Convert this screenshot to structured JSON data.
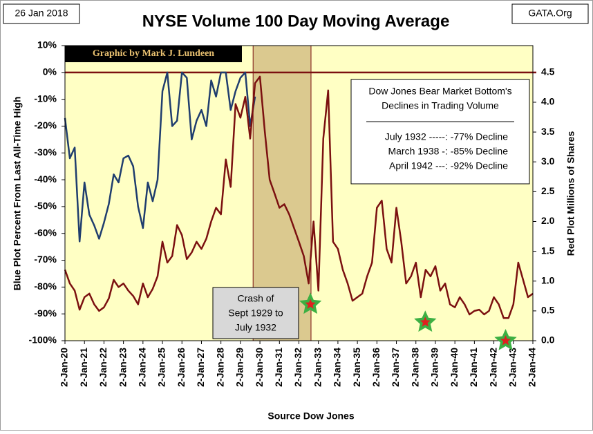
{
  "chart_data": {
    "type": "line",
    "date_label": "26 Jan 2018",
    "title": "NYSE  Volume 100 Day Moving Average",
    "source_site": "GATA.Org",
    "credit": "Graphic by Mark J. Lundeen",
    "xlabel": "Source Dow Jones",
    "ylabel": "Blue Plot  Percent  From  Last  All-Time High",
    "y2label": "Red Plot  Millions  of  Shares",
    "info_box": {
      "title": [
        "Dow Jones Bear Market Bottom's",
        "Declines in Trading Volume"
      ],
      "lines": [
        "July 1932 -----: -77% Decline",
        "March 1938 -: -85% Decline",
        "April 1942 ---: -92% Decline"
      ]
    },
    "highlight": {
      "x": [
        1929.65,
        1932.62
      ],
      "label": [
        "Crash of",
        "Sept 1929  to",
        "July 1932"
      ]
    },
    "markers": [
      {
        "x": 1932.59,
        "value": 0.61
      },
      {
        "x": 1938.48,
        "value": 0.31
      },
      {
        "x": 1942.6,
        "value": 0
      }
    ],
    "x": [
      1920,
      1920.25,
      1920.5,
      1920.75,
      1921,
      1921.25,
      1921.5,
      1921.75,
      1922,
      1922.25,
      1922.5,
      1922.75,
      1923,
      1923.25,
      1923.5,
      1923.75,
      1924,
      1924.25,
      1924.5,
      1924.75,
      1925,
      1925.25,
      1925.5,
      1925.75,
      1926,
      1926.25,
      1926.5,
      1926.75,
      1927,
      1927.25,
      1927.5,
      1927.75,
      1928,
      1928.25,
      1928.5,
      1928.75,
      1929,
      1929.25,
      1929.5,
      1929.75,
      1930,
      1930.25,
      1930.5,
      1930.75,
      1931,
      1931.25,
      1931.5,
      1931.75,
      1932,
      1932.25,
      1932.5,
      1932.75,
      1933,
      1933.25,
      1933.5,
      1933.75,
      1934,
      1934.25,
      1934.5,
      1934.75,
      1935,
      1935.25,
      1935.5,
      1935.75,
      1936,
      1936.25,
      1936.5,
      1936.75,
      1937,
      1937.25,
      1937.5,
      1937.75,
      1938,
      1938.25,
      1938.5,
      1938.75,
      1939,
      1939.25,
      1939.5,
      1939.75,
      1940,
      1940.25,
      1940.5,
      1940.75,
      1941,
      1941.25,
      1941.5,
      1941.75,
      1942,
      1942.25,
      1942.5,
      1942.75,
      1943,
      1943.25,
      1943.5,
      1943.75,
      1944
    ],
    "series": [
      {
        "name": "Blue Plot",
        "color": "#1f3d6e",
        "values": [
          -17,
          -32,
          -28,
          -63,
          -41,
          -53,
          -57,
          -62,
          -56,
          -49,
          -38,
          -41,
          -32,
          -31,
          -35,
          -50,
          -58,
          -41,
          -48,
          -40,
          -7,
          0,
          -20,
          -18,
          0,
          -2,
          -25,
          -18,
          -14,
          -20,
          -3,
          -9,
          0,
          0,
          -14,
          -7,
          -2,
          0,
          -20,
          -9,
          null,
          null,
          null,
          null,
          null,
          null,
          null,
          null,
          null,
          null,
          null,
          null,
          null,
          null,
          null,
          null,
          null,
          null,
          null,
          null,
          null,
          null,
          null,
          null,
          null,
          null,
          null,
          null,
          null,
          null,
          null,
          null,
          null,
          null,
          null,
          null,
          null,
          null,
          null,
          null,
          null,
          null,
          null,
          null,
          null,
          null,
          null,
          null,
          null,
          null,
          null,
          null,
          null,
          null,
          null,
          null,
          null
        ]
      },
      {
        "name": "Red Plot",
        "color": "#7b1010",
        "axis": "y2",
        "values": [
          1.19,
          0.96,
          0.84,
          0.52,
          0.73,
          0.79,
          0.61,
          0.5,
          0.56,
          0.71,
          1.02,
          0.9,
          0.96,
          0.84,
          0.75,
          0.61,
          0.96,
          0.73,
          0.87,
          1.08,
          1.66,
          1.31,
          1.42,
          1.94,
          1.77,
          1.37,
          1.48,
          1.66,
          1.54,
          1.71,
          2.0,
          2.23,
          2.12,
          3.04,
          2.58,
          3.97,
          3.74,
          4.09,
          3.39,
          4.32,
          4.43,
          3.51,
          2.7,
          2.47,
          2.23,
          2.29,
          2.12,
          1.89,
          1.66,
          1.42,
          0.96,
          2.0,
          0.84,
          3.39,
          4.2,
          1.66,
          1.54,
          1.19,
          0.96,
          0.67,
          0.73,
          0.79,
          1.08,
          1.31,
          2.23,
          2.35,
          1.54,
          1.31,
          2.23,
          1.66,
          0.96,
          1.08,
          1.31,
          0.73,
          1.19,
          1.08,
          1.25,
          0.84,
          0.96,
          0.61,
          0.56,
          0.73,
          0.61,
          0.44,
          0.5,
          0.52,
          0.44,
          0.5,
          0.73,
          0.61,
          0.38,
          0.38,
          0.61,
          1.31,
          1.02,
          0.73,
          0.79
        ]
      }
    ],
    "xlim": [
      1920,
      1944
    ],
    "xticks": [
      {
        "value": 1920,
        "label": "2-Jan-20"
      },
      {
        "value": 1921,
        "label": "2-Jan-21"
      },
      {
        "value": 1922,
        "label": "2-Jan-22"
      },
      {
        "value": 1923,
        "label": "2-Jan-23"
      },
      {
        "value": 1924,
        "label": "2-Jan-24"
      },
      {
        "value": 1925,
        "label": "2-Jan-25"
      },
      {
        "value": 1926,
        "label": "2-Jan-26"
      },
      {
        "value": 1927,
        "label": "2-Jan-27"
      },
      {
        "value": 1928,
        "label": "2-Jan-28"
      },
      {
        "value": 1929,
        "label": "2-Jan-29"
      },
      {
        "value": 1930,
        "label": "2-Jan-30"
      },
      {
        "value": 1931,
        "label": "2-Jan-31"
      },
      {
        "value": 1932,
        "label": "2-Jan-32"
      },
      {
        "value": 1933,
        "label": "2-Jan-33"
      },
      {
        "value": 1934,
        "label": "2-Jan-34"
      },
      {
        "value": 1935,
        "label": "2-Jan-35"
      },
      {
        "value": 1936,
        "label": "2-Jan-36"
      },
      {
        "value": 1937,
        "label": "2-Jan-37"
      },
      {
        "value": 1938,
        "label": "2-Jan-38"
      },
      {
        "value": 1939,
        "label": "2-Jan-39"
      },
      {
        "value": 1940,
        "label": "2-Jan-40"
      },
      {
        "value": 1941,
        "label": "2-Jan-41"
      },
      {
        "value": 1942,
        "label": "2-Jan-42"
      },
      {
        "value": 1943,
        "label": "2-Jan-43"
      },
      {
        "value": 1944,
        "label": "2-Jan-44"
      }
    ],
    "ylim": [
      -100,
      10
    ],
    "yticks": [
      {
        "value": 10,
        "label": "10%"
      },
      {
        "value": 0,
        "label": "0%"
      },
      {
        "value": -10,
        "label": "-10%"
      },
      {
        "value": -20,
        "label": "-20%"
      },
      {
        "value": -30,
        "label": "-30%"
      },
      {
        "value": -40,
        "label": "-40%"
      },
      {
        "value": -50,
        "label": "-50%"
      },
      {
        "value": -60,
        "label": "-60%"
      },
      {
        "value": -70,
        "label": "-70%"
      },
      {
        "value": -80,
        "label": "-80%"
      },
      {
        "value": -90,
        "label": "-90%"
      },
      {
        "value": -100,
        "label": "-100%"
      }
    ],
    "y2lim": [
      0,
      4.95
    ],
    "y2ticks": [
      {
        "value": 0,
        "label": "0.0"
      },
      0.5,
      {
        "value": 1,
        "label": "1.0"
      },
      1.5,
      {
        "value": 2,
        "label": "2.0"
      },
      2.5,
      {
        "value": 3,
        "label": "3.0"
      },
      3.5,
      {
        "value": 4,
        "label": "4.0"
      },
      4.5
    ],
    "plot_background": "#ffffc4"
  }
}
